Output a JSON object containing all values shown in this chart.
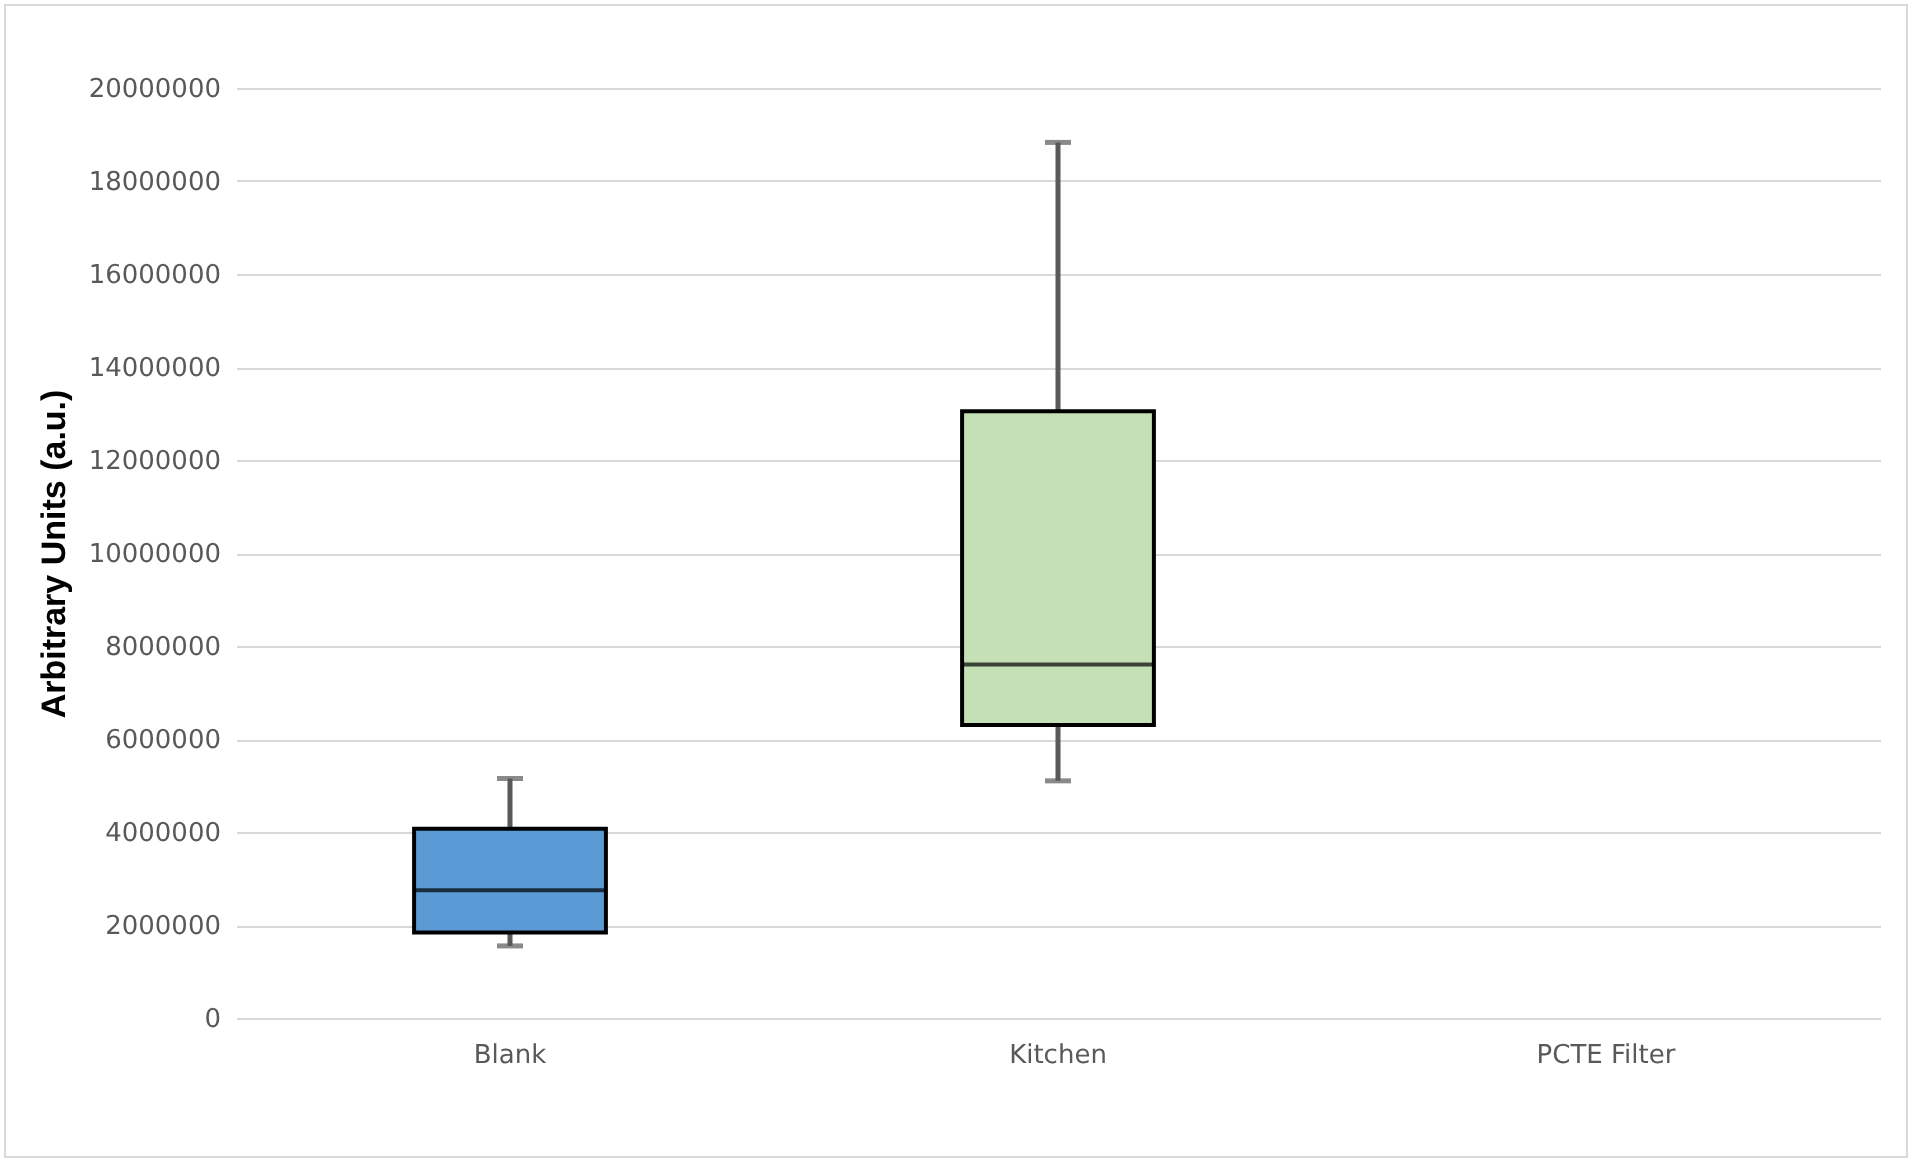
{
  "chart_data": {
    "type": "box",
    "ylabel": "Arbitrary Units (a.u.)",
    "categories": [
      "Blank",
      "Kitchen",
      "PCTE Filter"
    ],
    "boxes": [
      {
        "low": 1550000,
        "q1": 1840000,
        "median": 2750000,
        "q3": 4070000,
        "high": 5150000
      },
      {
        "low": 5100000,
        "q1": 6300000,
        "median": 7600000,
        "q3": 13050000,
        "high": 18830000
      },
      null
    ],
    "colors": [
      "#5b9bd5",
      "#c5e0b4",
      null
    ],
    "ylim": [
      0,
      20000000
    ],
    "yticks": [
      0,
      2000000,
      4000000,
      6000000,
      8000000,
      10000000,
      12000000,
      14000000,
      16000000,
      18000000,
      20000000
    ],
    "grid": "y"
  }
}
